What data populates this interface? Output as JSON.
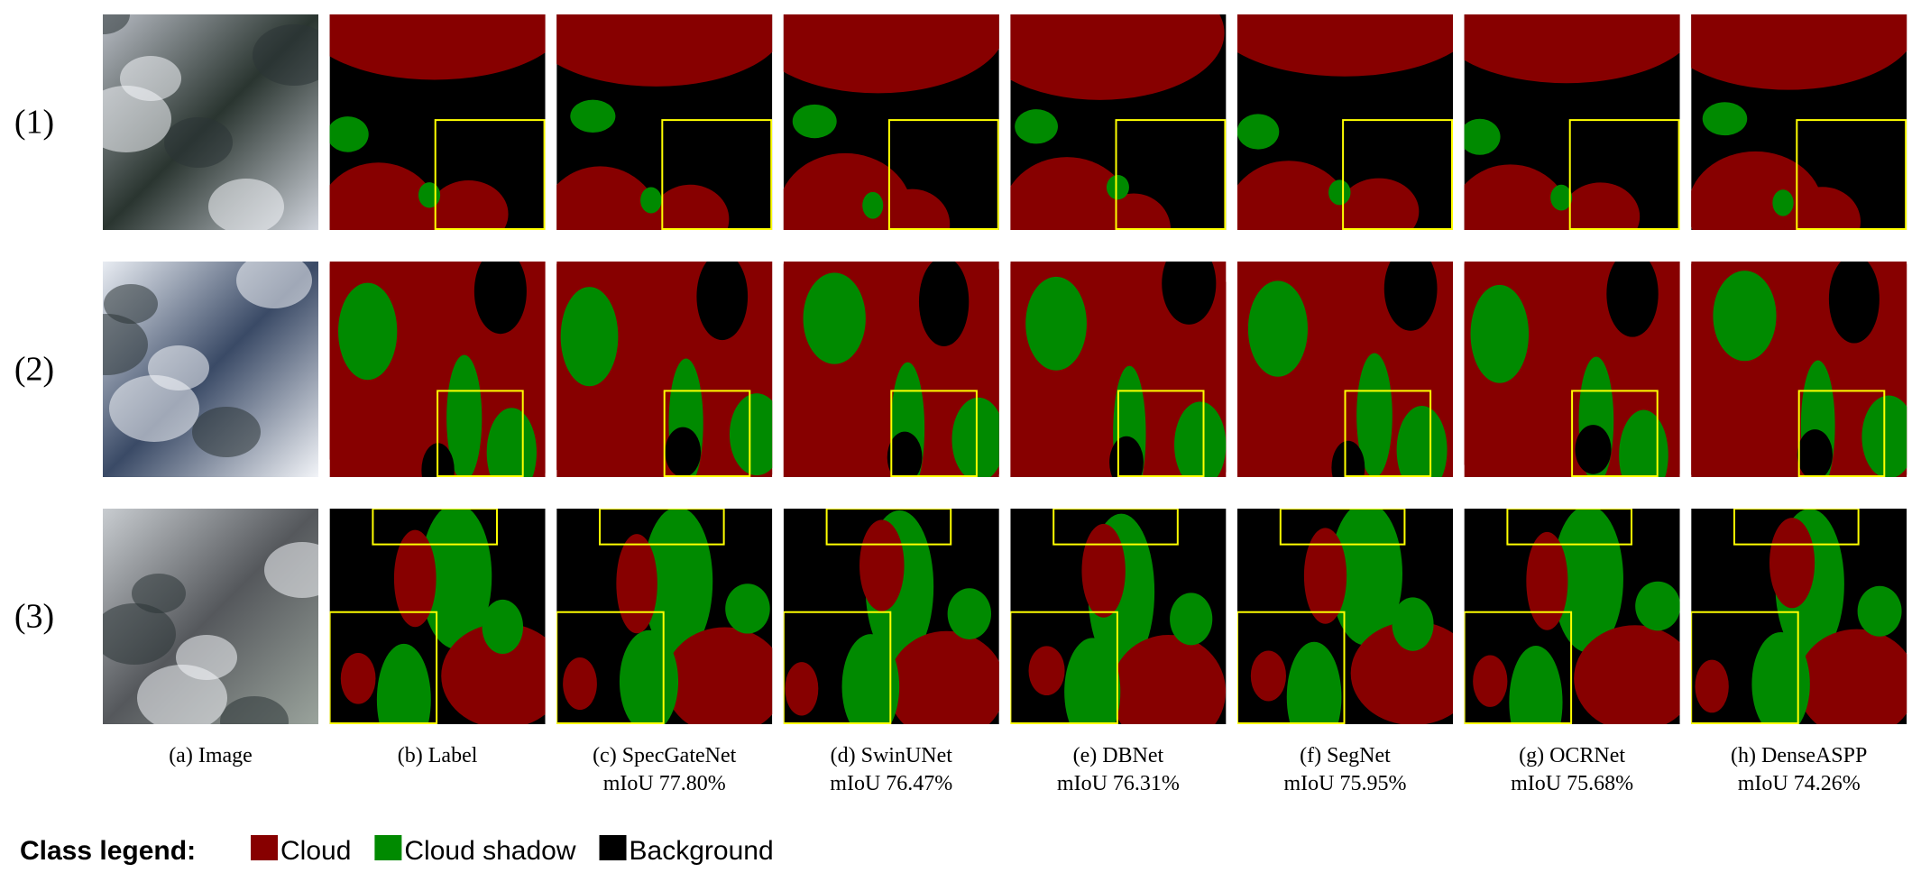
{
  "row_labels": [
    "(1)",
    "(2)",
    "(3)"
  ],
  "columns": [
    {
      "caption": "(a) Image"
    },
    {
      "caption": "(b) Label"
    },
    {
      "caption": "(c) SpecGateNet",
      "score": "mIoU 77.80%"
    },
    {
      "caption": "(d) SwinUNet",
      "score": "mIoU 76.47%"
    },
    {
      "caption": "(e) DBNet",
      "score": "mIoU 76.31%"
    },
    {
      "caption": "(f) SegNet",
      "score": "mIoU 75.95%"
    },
    {
      "caption": "(g) OCRNet",
      "score": "mIoU 75.68%"
    },
    {
      "caption": "(h) DenseASPP",
      "score": "mIoU 74.26%"
    }
  ],
  "legend": {
    "title": "Class legend:",
    "items": [
      {
        "name": "Cloud",
        "color": "#870000"
      },
      {
        "name": "Cloud shadow",
        "color": "#008a00"
      },
      {
        "name": "Background",
        "color": "#000000"
      }
    ]
  }
}
